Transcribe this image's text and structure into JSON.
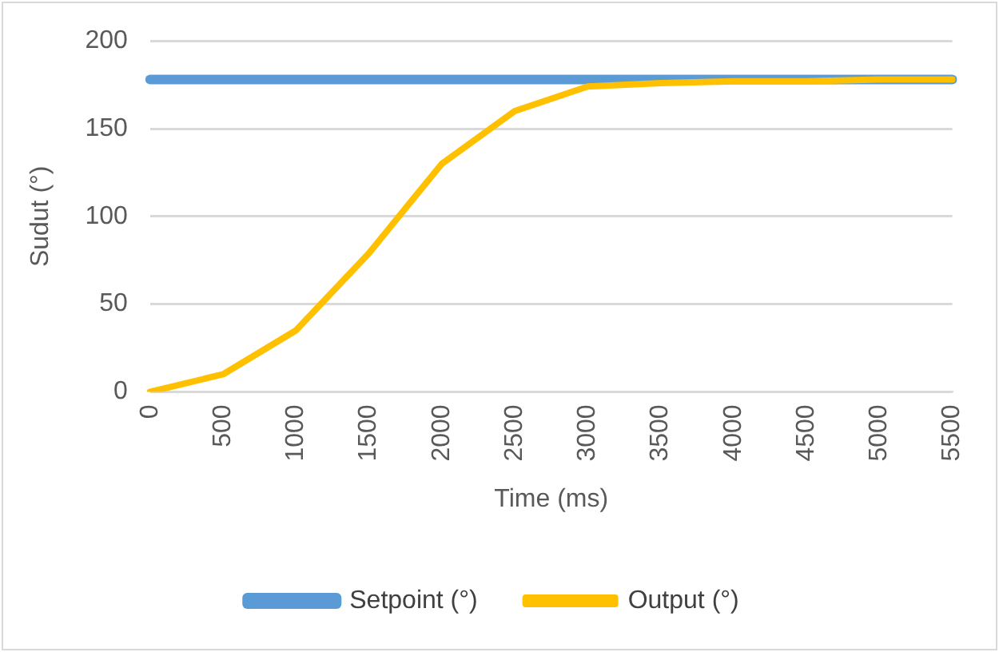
{
  "chart_data": {
    "type": "line",
    "xlabel": "Time (ms)",
    "ylabel": "Sudut (°)",
    "categories": [
      "0",
      "500",
      "1000",
      "1500",
      "2000",
      "2500",
      "3000",
      "3500",
      "4000",
      "4500",
      "5000",
      "5500"
    ],
    "series": [
      {
        "name": "Setpoint (°)",
        "color": "#5b9bd5",
        "values": [
          178,
          178,
          178,
          178,
          178,
          178,
          178,
          178,
          178,
          178,
          178,
          178
        ]
      },
      {
        "name": "Output (°)",
        "color": "#ffc000",
        "values": [
          0,
          10,
          35,
          79,
          130,
          160,
          174,
          176,
          177,
          177,
          178,
          178
        ]
      }
    ],
    "ylim": [
      0,
      200
    ],
    "yticks": [
      0,
      50,
      100,
      150,
      200
    ],
    "grid": "y",
    "legend": "bottom",
    "marker": "none",
    "line_style": "solid"
  }
}
